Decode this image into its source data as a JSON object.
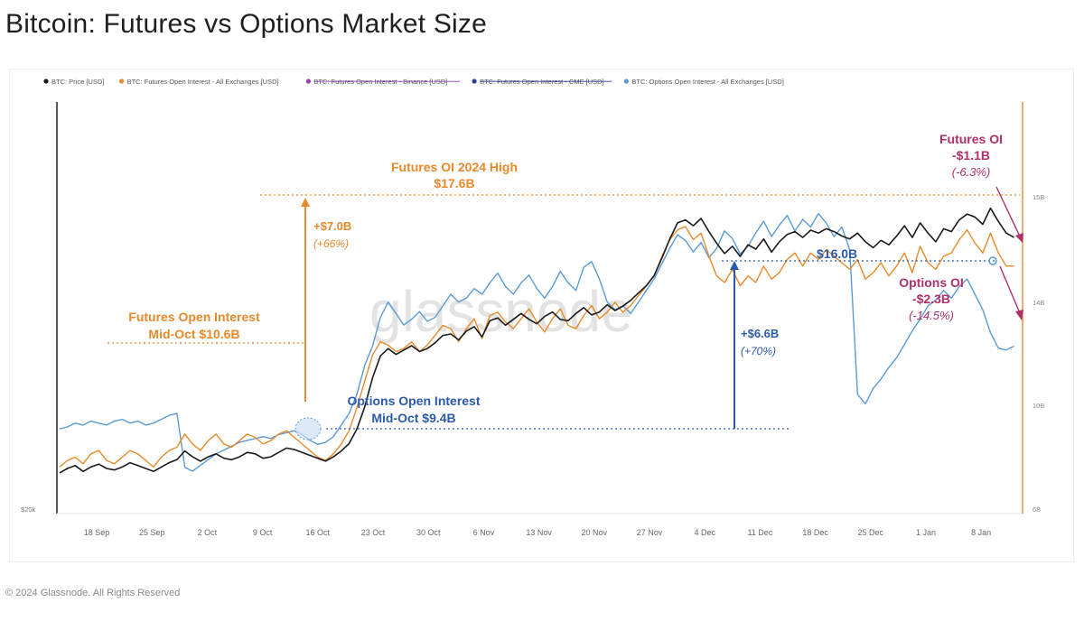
{
  "page": {
    "title": "Bitcoin: Futures vs Options Market Size",
    "footer": "© 2024 Glassnode. All Rights Reserved",
    "watermark": "glassnode"
  },
  "colors": {
    "price": "#1a1a1a",
    "futures_oi": "#e8892b",
    "futures_binance": "#8e44ad",
    "futures_cme": "#2c3e8f",
    "options_oi": "#5b9bd5",
    "annotation_orange": "#e8892b",
    "annotation_blue": "#2a5aa8",
    "annotation_crimson": "#b0306a"
  },
  "chart_data": {
    "type": "line",
    "legend_position": "top-left",
    "legend": [
      {
        "label": "BTC: Price [USD]",
        "color": "#1a1a1a",
        "strikethrough": false
      },
      {
        "label": "BTC: Futures Open Interest - All Exchanges [USD]",
        "color": "#e8892b",
        "strikethrough": false
      },
      {
        "label": "BTC: Futures Open Interest - Binance [USD]",
        "color": "#8e44ad",
        "strikethrough": true
      },
      {
        "label": "BTC: Futures Open Interest - CME [USD]",
        "color": "#2c3e8f",
        "strikethrough": true
      },
      {
        "label": "BTC: Options Open Interest - All Exchanges [USD]",
        "color": "#5b9bd5",
        "strikethrough": false
      }
    ],
    "x_ticks": [
      "18 Sep",
      "25 Sep",
      "2 Oct",
      "9 Oct",
      "16 Oct",
      "23 Oct",
      "30 Oct",
      "6 Nov",
      "13 Nov",
      "20 Nov",
      "27 Nov",
      "4 Dec",
      "11 Dec",
      "18 Dec",
      "25 Dec",
      "1 Jan",
      "8 Jan"
    ],
    "y_left_ticks": [
      "$20k"
    ],
    "y_right_ticks": [
      "15B",
      "14B",
      "10B",
      "6B"
    ],
    "series": [
      {
        "name": "BTC: Price [USD]",
        "key": "price",
        "x": [
          0,
          1,
          2,
          3,
          4,
          5,
          6,
          7,
          8,
          9,
          10,
          11,
          12,
          13,
          14,
          15,
          16,
          17,
          18,
          19,
          20,
          21,
          22,
          23,
          24,
          25,
          26,
          27,
          28,
          29,
          30,
          31,
          32,
          33,
          34,
          35,
          36,
          37,
          38,
          39,
          40,
          41,
          42,
          43,
          44,
          45,
          46,
          47,
          48,
          49,
          50,
          51,
          52,
          53,
          54,
          55,
          56,
          57,
          58,
          59,
          60,
          61,
          62,
          63,
          64,
          65,
          66,
          67,
          68,
          69,
          70,
          71,
          72,
          73,
          74,
          75,
          76,
          77,
          78,
          79,
          80,
          81,
          82,
          83,
          84,
          85,
          86,
          87,
          88,
          89,
          90,
          91,
          92,
          93,
          94,
          95,
          96,
          97,
          98,
          99,
          100,
          101,
          102,
          103,
          104,
          105,
          106,
          107,
          108,
          109,
          110,
          111,
          112,
          113,
          114,
          115,
          116,
          117,
          118,
          119,
          120,
          121,
          122
        ],
        "y": [
          26.5,
          26.8,
          27.0,
          26.6,
          26.9,
          27.1,
          26.8,
          26.7,
          26.9,
          27.2,
          27.0,
          26.8,
          26.6,
          26.9,
          27.2,
          27.4,
          28.0,
          27.6,
          27.3,
          27.6,
          27.8,
          27.5,
          27.4,
          27.6,
          27.9,
          27.8,
          27.5,
          27.6,
          27.9,
          28.2,
          28.1,
          27.9,
          27.7,
          27.5,
          27.3,
          27.6,
          28.0,
          28.5,
          29.5,
          31.0,
          33.0,
          34.5,
          35.0,
          34.6,
          34.9,
          35.2,
          34.8,
          35.0,
          35.4,
          35.9,
          36.0,
          35.6,
          36.2,
          36.5,
          35.8,
          36.9,
          37.1,
          36.6,
          37.0,
          37.4,
          37.0,
          36.7,
          37.2,
          37.5,
          37.0,
          36.9,
          37.4,
          37.8,
          37.3,
          37.5,
          38.0,
          37.6,
          37.9,
          38.3,
          38.8,
          39.3,
          40.0,
          41.2,
          42.5,
          43.6,
          43.8,
          43.4,
          43.9,
          43.0,
          42.2,
          41.5,
          42.0,
          41.3,
          42.1,
          41.8,
          42.5,
          41.6,
          42.3,
          42.8,
          43.0,
          42.6,
          43.1,
          42.9,
          43.2,
          43.0,
          42.7,
          42.5,
          42.9,
          42.3,
          41.9,
          42.4,
          42.1,
          42.7,
          43.4,
          42.6,
          43.6,
          42.9,
          42.3,
          43.2,
          43.0,
          43.8,
          44.2,
          44.0,
          43.5,
          44.6,
          43.7,
          42.9,
          42.6
        ],
        "ylabel_units": "USD thousands"
      },
      {
        "name": "BTC: Futures Open Interest - All Exchanges [USD]",
        "key": "futures_oi",
        "x": [
          0,
          1,
          2,
          3,
          4,
          5,
          6,
          7,
          8,
          9,
          10,
          11,
          12,
          13,
          14,
          15,
          16,
          17,
          18,
          19,
          20,
          21,
          22,
          23,
          24,
          25,
          26,
          27,
          28,
          29,
          30,
          31,
          32,
          33,
          34,
          35,
          36,
          37,
          38,
          39,
          40,
          41,
          42,
          43,
          44,
          45,
          46,
          47,
          48,
          49,
          50,
          51,
          52,
          53,
          54,
          55,
          56,
          57,
          58,
          59,
          60,
          61,
          62,
          63,
          64,
          65,
          66,
          67,
          68,
          69,
          70,
          71,
          72,
          73,
          74,
          75,
          76,
          77,
          78,
          79,
          80,
          81,
          82,
          83,
          84,
          85,
          86,
          87,
          88,
          89,
          90,
          91,
          92,
          93,
          94,
          95,
          96,
          97,
          98,
          99,
          100,
          101,
          102,
          103,
          104,
          105,
          106,
          107,
          108,
          109,
          110,
          111,
          112,
          113,
          114,
          115,
          116,
          117,
          118,
          119,
          120,
          121,
          122
        ],
        "y": [
          10.4,
          10.6,
          10.7,
          10.5,
          10.8,
          10.9,
          10.6,
          10.5,
          10.7,
          10.9,
          10.8,
          10.6,
          10.4,
          10.7,
          10.9,
          11.0,
          11.4,
          11.1,
          10.9,
          11.2,
          11.4,
          11.1,
          11.0,
          11.2,
          11.4,
          11.3,
          11.1,
          11.2,
          11.4,
          11.5,
          11.3,
          11.1,
          10.9,
          10.7,
          10.6,
          10.8,
          11.1,
          11.5,
          12.2,
          13.0,
          13.8,
          14.2,
          14.1,
          13.9,
          14.0,
          14.2,
          13.9,
          14.1,
          14.4,
          14.7,
          14.6,
          14.2,
          14.6,
          14.9,
          14.3,
          15.0,
          15.1,
          14.8,
          14.6,
          14.9,
          15.2,
          14.8,
          14.5,
          14.9,
          15.2,
          14.7,
          14.6,
          15.0,
          15.3,
          14.9,
          15.1,
          15.4,
          15.1,
          15.3,
          15.6,
          15.9,
          16.2,
          16.8,
          17.3,
          17.6,
          17.7,
          17.3,
          17.5,
          16.8,
          16.2,
          16.0,
          16.4,
          15.9,
          16.2,
          16.0,
          16.5,
          16.1,
          16.3,
          16.7,
          16.9,
          16.5,
          16.9,
          16.7,
          17.0,
          16.8,
          16.6,
          16.4,
          16.7,
          16.1,
          16.3,
          16.6,
          16.2,
          16.5,
          16.9,
          16.3,
          17.1,
          16.6,
          16.4,
          16.8,
          16.9,
          17.3,
          17.6,
          17.2,
          16.9,
          17.5,
          16.9,
          16.5,
          16.5
        ],
        "ylabel_units": "USD billions"
      },
      {
        "name": "BTC: Options Open Interest - All Exchanges [USD]",
        "key": "options_oi",
        "x": [
          0,
          1,
          2,
          3,
          4,
          5,
          6,
          7,
          8,
          9,
          10,
          11,
          12,
          13,
          14,
          15,
          16,
          17,
          18,
          19,
          20,
          21,
          22,
          23,
          24,
          25,
          26,
          27,
          28,
          29,
          30,
          31,
          32,
          33,
          34,
          35,
          36,
          37,
          38,
          39,
          40,
          41,
          42,
          43,
          44,
          45,
          46,
          47,
          48,
          49,
          50,
          51,
          52,
          53,
          54,
          55,
          56,
          57,
          58,
          59,
          60,
          61,
          62,
          63,
          64,
          65,
          66,
          67,
          68,
          69,
          70,
          71,
          72,
          73,
          74,
          75,
          76,
          77,
          78,
          79,
          80,
          81,
          82,
          83,
          84,
          85,
          86,
          87,
          88,
          89,
          90,
          91,
          92,
          93,
          94,
          95,
          96,
          97,
          98,
          99,
          100,
          101,
          102,
          103,
          104,
          105,
          106,
          107,
          108,
          109,
          110,
          111,
          112,
          113,
          114,
          115,
          116,
          117,
          118,
          119,
          120,
          121,
          122
        ],
        "y": [
          10.2,
          10.3,
          10.5,
          10.4,
          10.6,
          10.5,
          10.4,
          10.6,
          10.7,
          10.5,
          10.6,
          10.4,
          10.5,
          10.7,
          10.9,
          11.0,
          8.2,
          8.0,
          8.3,
          8.6,
          8.9,
          9.1,
          9.3,
          9.5,
          9.6,
          9.7,
          9.8,
          9.7,
          9.9,
          10.0,
          10.1,
          9.9,
          9.6,
          9.4,
          9.5,
          9.8,
          10.4,
          11.0,
          12.0,
          13.5,
          14.5,
          16.0,
          16.8,
          16.2,
          15.6,
          15.9,
          16.3,
          15.8,
          16.0,
          16.6,
          17.2,
          16.8,
          17.0,
          17.5,
          17.2,
          17.8,
          18.3,
          17.6,
          17.2,
          17.8,
          18.2,
          17.5,
          17.0,
          17.6,
          18.4,
          17.8,
          17.4,
          18.6,
          18.9,
          18.0,
          16.8,
          16.4,
          16.6,
          16.2,
          16.8,
          17.4,
          18.0,
          18.8,
          19.6,
          20.3,
          20.0,
          19.4,
          19.9,
          19.1,
          19.6,
          20.5,
          20.1,
          19.3,
          19.7,
          20.4,
          21.0,
          20.2,
          20.8,
          21.3,
          20.5,
          21.1,
          20.7,
          21.4,
          20.9,
          20.2,
          20.7,
          19.5,
          12.0,
          11.5,
          12.3,
          12.8,
          13.4,
          13.9,
          14.6,
          15.3,
          15.9,
          16.6,
          16.9,
          17.4,
          17.0,
          17.6,
          18.0,
          17.2,
          16.4,
          15.2,
          14.4,
          14.3,
          14.5
        ],
        "ylabel_units": "USD billions (scaled)"
      }
    ],
    "annotations": [
      {
        "key": "futures_high",
        "lines": [
          "Futures OI 2024 High",
          "$17.6B"
        ],
        "color": "#e8892b"
      },
      {
        "key": "futures_gain",
        "lines": [
          "+$7.0B",
          "(+66%)"
        ],
        "color": "#e8892b"
      },
      {
        "key": "futures_midoct",
        "lines": [
          "Futures Open Interest",
          "Mid-Oct $10.6B"
        ],
        "color": "#e8892b"
      },
      {
        "key": "options_midoct",
        "lines": [
          "Options Open Interest",
          "Mid-Oct $9.4B"
        ],
        "color": "#2a5aa8"
      },
      {
        "key": "options_level",
        "lines": [
          "$16.0B"
        ],
        "color": "#2a5aa8"
      },
      {
        "key": "options_gain",
        "lines": [
          "+$6.6B",
          "(+70%)"
        ],
        "color": "#2a5aa8"
      },
      {
        "key": "futures_drop",
        "lines": [
          "Futures OI",
          "-$1.1B",
          "(-6.3%)"
        ],
        "color": "#b0306a"
      },
      {
        "key": "options_drop",
        "lines": [
          "Options OI",
          "-$2.3B",
          "(-14.5%)"
        ],
        "color": "#b0306a"
      }
    ]
  }
}
